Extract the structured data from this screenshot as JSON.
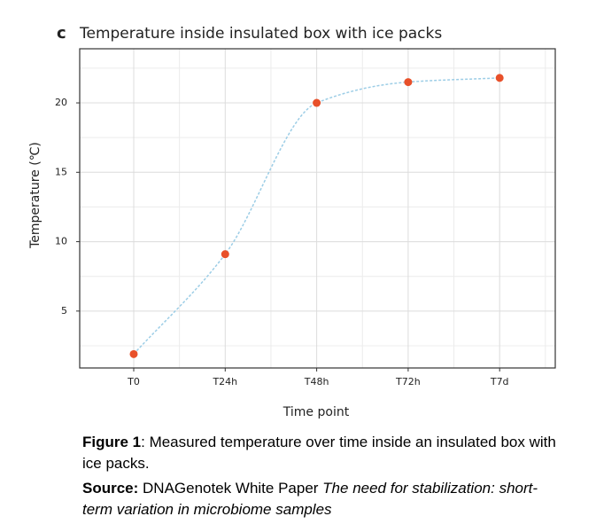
{
  "chart_data": {
    "type": "scatter",
    "panel_label": "c",
    "title": "Temperature inside insulated box with ice packs",
    "x_label": "Time point",
    "y_label": "Temperature (℃)",
    "categories": [
      "T0",
      "T24h",
      "T48h",
      "T72h",
      "T7d"
    ],
    "values": [
      1.9,
      9.1,
      20,
      21.5,
      21.8
    ],
    "color": "#e8502a",
    "fit_line_color": "#9ccde6",
    "ylim": [
      0.9,
      23.9
    ],
    "yticks": [
      5,
      10,
      15,
      20
    ],
    "minor_yticks": [
      2.5,
      7.5,
      12.5,
      17.5,
      22.5
    ],
    "grid": true
  },
  "caption": {
    "figure_label": "Figure 1",
    "figure_text": ": Measured temperature over time inside an insulated box with ice packs.",
    "source_label": "Source:",
    "source_text": " DNAGenotek White Paper ",
    "source_title": "The need for stabilization: short-term variation in microbiome samples"
  }
}
